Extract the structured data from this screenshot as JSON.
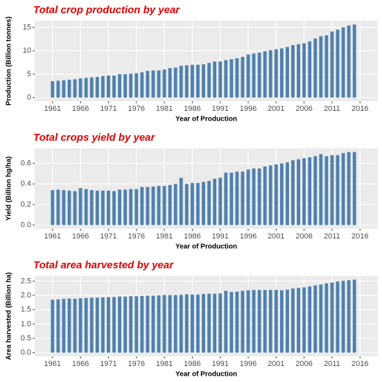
{
  "chart_data": [
    {
      "type": "bar",
      "title": "Total crop production by year",
      "x_label": "Year of Production",
      "y_label": "Production (Billion tonnes)",
      "color": "#4f81af",
      "x": [
        1961,
        1962,
        1963,
        1964,
        1965,
        1966,
        1967,
        1968,
        1969,
        1970,
        1971,
        1972,
        1973,
        1974,
        1975,
        1976,
        1977,
        1978,
        1979,
        1980,
        1981,
        1982,
        1983,
        1984,
        1985,
        1986,
        1987,
        1988,
        1989,
        1990,
        1991,
        1992,
        1993,
        1994,
        1995,
        1996,
        1997,
        1998,
        1999,
        2000,
        2001,
        2002,
        2003,
        2004,
        2005,
        2006,
        2007,
        2008,
        2009,
        2010,
        2011,
        2012,
        2013,
        2014,
        2015
      ],
      "values": [
        3.5,
        3.6,
        3.7,
        3.8,
        3.9,
        4.1,
        4.2,
        4.3,
        4.4,
        4.6,
        4.7,
        4.7,
        5.0,
        5.0,
        5.1,
        5.2,
        5.4,
        5.7,
        5.8,
        5.8,
        6.0,
        6.3,
        6.4,
        6.8,
        6.9,
        7.0,
        7.0,
        7.1,
        7.4,
        7.7,
        7.7,
        8.0,
        8.2,
        8.4,
        8.7,
        9.2,
        9.4,
        9.6,
        9.9,
        10.1,
        10.3,
        10.5,
        10.8,
        11.2,
        11.4,
        11.6,
        12.0,
        12.6,
        13.1,
        13.3,
        14.1,
        14.5,
        15.0,
        15.4,
        15.6
      ],
      "xlim": [
        1957.8,
        2018.2
      ],
      "xticks": [
        1961,
        1966,
        1971,
        1976,
        1981,
        1986,
        1991,
        1996,
        2001,
        2006,
        2011,
        2016
      ],
      "ylim": [
        -0.78,
        16.4
      ],
      "yticks": [
        0,
        5,
        10,
        15
      ],
      "grid": true
    },
    {
      "type": "bar",
      "title": "Total crops yield by year",
      "x_label": "Year of Production",
      "y_label": "Yield (Billion hg/ha)",
      "color": "#4f81af",
      "x": [
        1961,
        1962,
        1963,
        1964,
        1965,
        1966,
        1967,
        1968,
        1969,
        1970,
        1971,
        1972,
        1973,
        1974,
        1975,
        1976,
        1977,
        1978,
        1979,
        1980,
        1981,
        1982,
        1983,
        1984,
        1985,
        1986,
        1987,
        1988,
        1989,
        1990,
        1991,
        1992,
        1993,
        1994,
        1995,
        1996,
        1997,
        1998,
        1999,
        2000,
        2001,
        2002,
        2003,
        2004,
        2005,
        2006,
        2007,
        2008,
        2009,
        2010,
        2011,
        2012,
        2013,
        2014,
        2015
      ],
      "values": [
        0.34,
        0.345,
        0.34,
        0.335,
        0.33,
        0.36,
        0.35,
        0.34,
        0.335,
        0.335,
        0.335,
        0.33,
        0.345,
        0.345,
        0.35,
        0.35,
        0.37,
        0.37,
        0.375,
        0.38,
        0.38,
        0.39,
        0.4,
        0.46,
        0.4,
        0.41,
        0.41,
        0.42,
        0.43,
        0.45,
        0.46,
        0.51,
        0.51,
        0.52,
        0.52,
        0.54,
        0.55,
        0.55,
        0.57,
        0.58,
        0.59,
        0.6,
        0.61,
        0.63,
        0.64,
        0.65,
        0.66,
        0.67,
        0.69,
        0.67,
        0.68,
        0.68,
        0.7,
        0.71,
        0.71
      ],
      "xlim": [
        1957.8,
        2018.2
      ],
      "xticks": [
        1961,
        1966,
        1971,
        1976,
        1981,
        1986,
        1991,
        1996,
        2001,
        2006,
        2011,
        2016
      ],
      "ylim": [
        -0.036,
        0.746
      ],
      "yticks": [
        {
          "value": 0,
          "label": "0.0"
        },
        0.2,
        0.4,
        0.6
      ],
      "grid": true
    },
    {
      "type": "bar",
      "title": "Total area harvested by year",
      "x_label": "Year of Production",
      "y_label": "Area harvested (Billion ha)",
      "color": "#4f81af",
      "x": [
        1961,
        1962,
        1963,
        1964,
        1965,
        1966,
        1967,
        1968,
        1969,
        1970,
        1971,
        1972,
        1973,
        1974,
        1975,
        1976,
        1977,
        1978,
        1979,
        1980,
        1981,
        1982,
        1983,
        1984,
        1985,
        1986,
        1987,
        1988,
        1989,
        1990,
        1991,
        1992,
        1993,
        1994,
        1995,
        1996,
        1997,
        1998,
        1999,
        2000,
        2001,
        2002,
        2003,
        2004,
        2005,
        2006,
        2007,
        2008,
        2009,
        2010,
        2011,
        2012,
        2013,
        2014,
        2015
      ],
      "values": [
        1.85,
        1.86,
        1.88,
        1.89,
        1.88,
        1.9,
        1.91,
        1.92,
        1.92,
        1.93,
        1.94,
        1.94,
        1.96,
        1.96,
        1.97,
        1.97,
        1.98,
        1.99,
        1.99,
        2.0,
        2.01,
        2.01,
        2.01,
        2.02,
        2.04,
        2.03,
        2.03,
        2.05,
        2.06,
        2.06,
        2.07,
        2.16,
        2.12,
        2.13,
        2.16,
        2.18,
        2.19,
        2.19,
        2.19,
        2.19,
        2.19,
        2.18,
        2.2,
        2.24,
        2.26,
        2.28,
        2.31,
        2.35,
        2.38,
        2.42,
        2.45,
        2.49,
        2.51,
        2.53,
        2.55
      ],
      "xlim": [
        1957.8,
        2018.2
      ],
      "xticks": [
        1961,
        1966,
        1971,
        1976,
        1981,
        1986,
        1991,
        1996,
        2001,
        2006,
        2011,
        2016
      ],
      "ylim": [
        -0.13,
        2.68
      ],
      "yticks": [
        {
          "value": 0,
          "label": "0.0"
        },
        0.5,
        {
          "value": 1,
          "label": "1.0"
        },
        1.5,
        {
          "value": 2,
          "label": "2.0"
        },
        2.5
      ],
      "grid": true
    }
  ]
}
